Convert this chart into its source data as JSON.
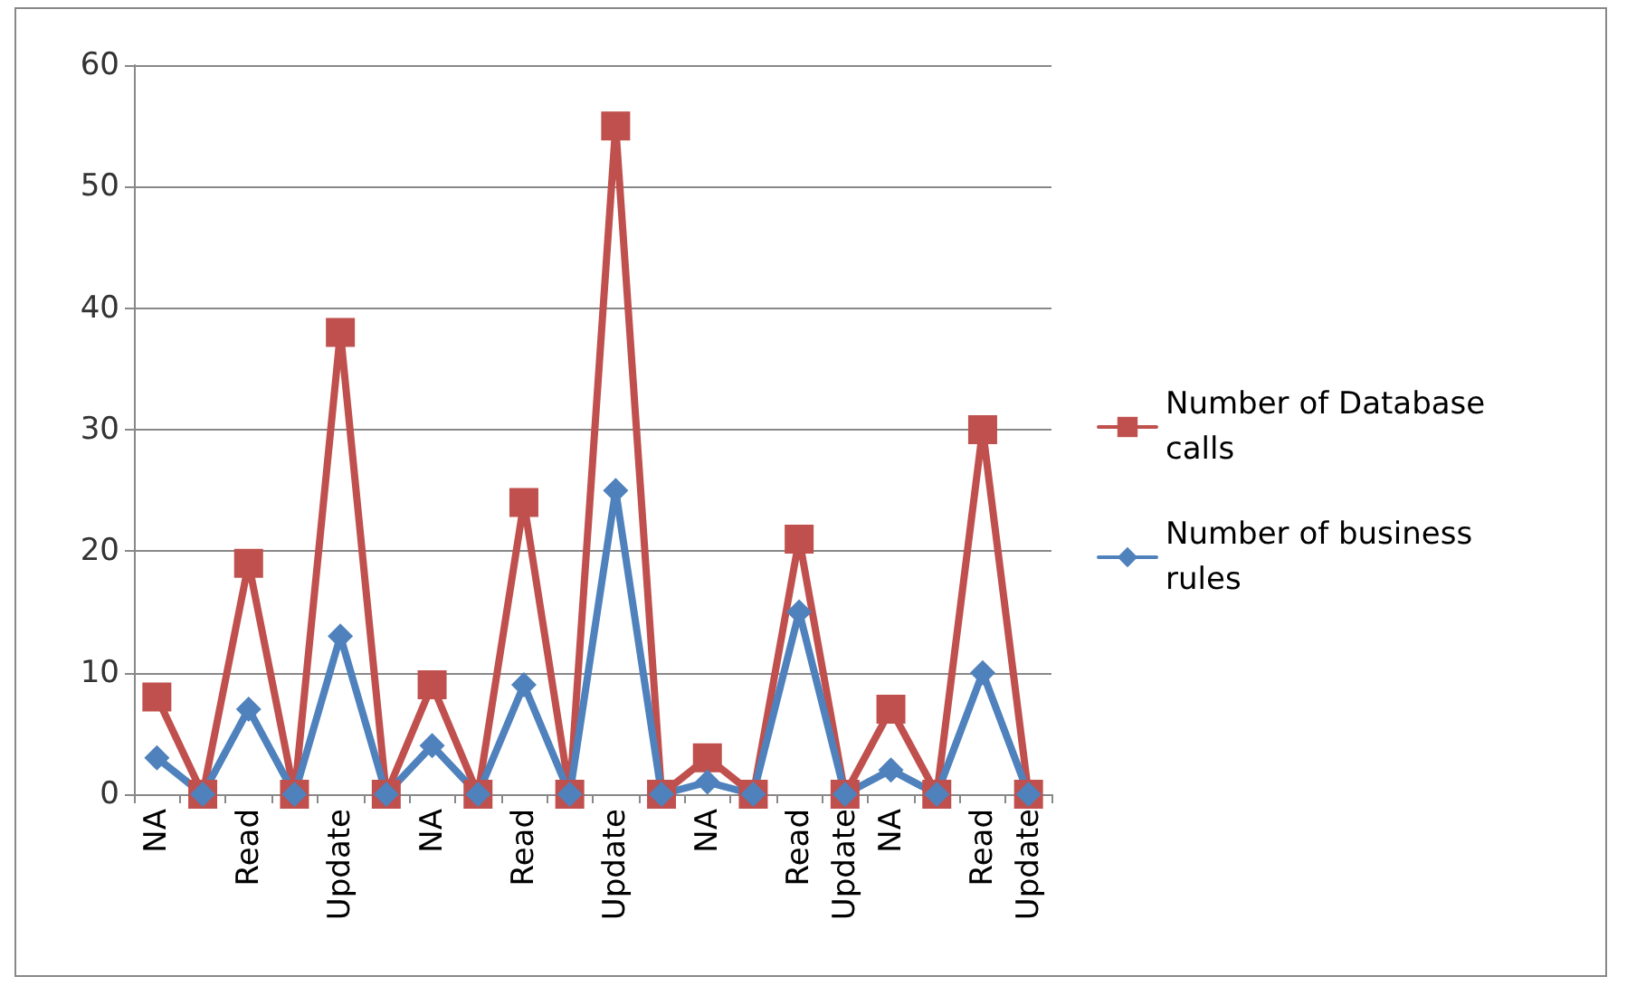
{
  "chart_data": {
    "type": "line",
    "categories": [
      "NA",
      null,
      "Read",
      null,
      "Update",
      null,
      "NA",
      null,
      "Read",
      null,
      "Update",
      null,
      "NA",
      null,
      "Read",
      "Update",
      "NA",
      null,
      "Read",
      "Update"
    ],
    "series": [
      {
        "name": "Number of Database calls",
        "color": "#c0504d",
        "marker": "square",
        "values": [
          8,
          0,
          19,
          0,
          38,
          0,
          9,
          0,
          24,
          0,
          55,
          0,
          3,
          0,
          21,
          0,
          7,
          0,
          30,
          0
        ]
      },
      {
        "name": "Number of business rules",
        "color": "#4f81bd",
        "marker": "diamond",
        "values": [
          3,
          0,
          7,
          0,
          13,
          0,
          4,
          0,
          9,
          0,
          25,
          0,
          1,
          0,
          15,
          0,
          2,
          0,
          10,
          0
        ]
      }
    ],
    "ylim": [
      0,
      60
    ],
    "yticks": [
      0,
      10,
      20,
      30,
      40,
      50,
      60
    ],
    "grid": "y",
    "legend": "right",
    "line_style": "solid"
  }
}
